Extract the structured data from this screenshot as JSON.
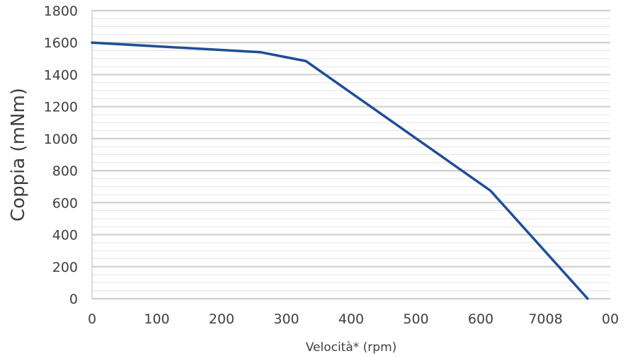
{
  "chart_data": {
    "type": "line",
    "title": "",
    "xlabel": "Velocità* (rpm)",
    "ylabel": "Coppia (mNm)",
    "xlim": [
      0,
      800
    ],
    "ylim": [
      0,
      1800
    ],
    "x_tick_labels": [
      "0",
      "100",
      "200",
      "300",
      "400",
      "500",
      "600",
      "7008",
      "00"
    ],
    "y_tick_labels": [
      "0",
      "200",
      "400",
      "600",
      "800",
      "1000",
      "1200",
      "1400",
      "1600",
      "1800"
    ],
    "grid": "major and minor horizontal gridlines",
    "legend": "none",
    "series": [
      {
        "color": "#1f4e96",
        "x": [
          0,
          260,
          330,
          615,
          765
        ],
        "y": [
          1600,
          1540,
          1485,
          675,
          0
        ]
      }
    ]
  }
}
